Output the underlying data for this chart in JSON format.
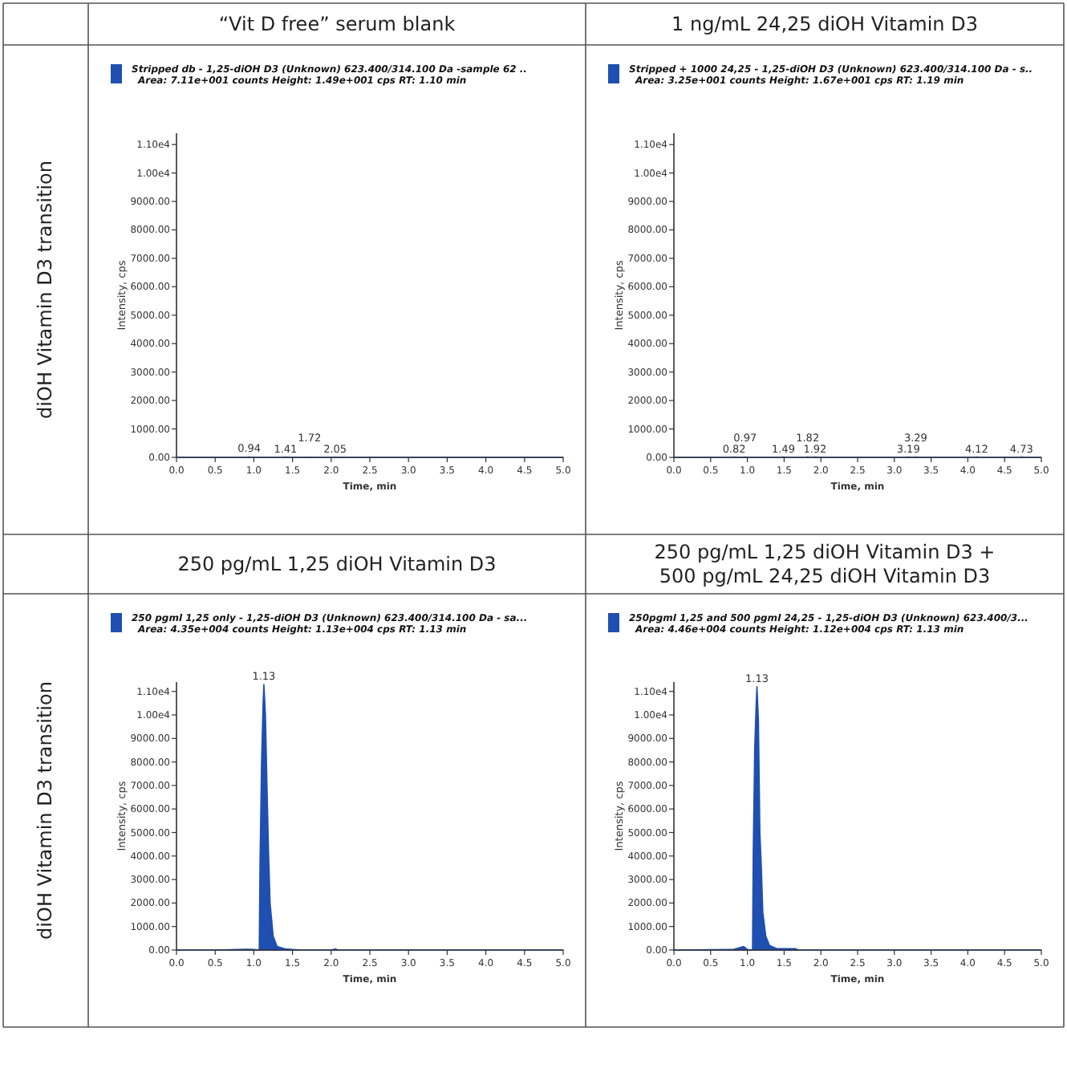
{
  "chart_data": [
    {
      "type": "area",
      "title": "“Vit D free” serum blank",
      "subtitle": "Area: 7.11e+001 counts  Height: 1.49e+001 cps  RT: 1.10 min",
      "xlabel": "Time, min",
      "ylabel": "Intensity, cps",
      "legend": "top left",
      "annotations": [
        "diOH Vitamin D3 transition",
        {
          "text": "0.94",
          "x": 0.94,
          "y": 15
        },
        {
          "text": "1.41",
          "x": 1.41,
          "y": 10
        },
        {
          "text": "1.72",
          "x": 1.72,
          "y": 8
        },
        {
          "text": "2.05",
          "x": 2.05,
          "y": 8
        }
      ],
      "xlim": [
        0,
        5
      ],
      "xticks": [
        {
          "value": 0,
          "label": "0.0"
        },
        0.5,
        {
          "value": 1,
          "label": "1.0"
        },
        1.5,
        {
          "value": 2,
          "label": "2.0"
        },
        2.5,
        {
          "value": 3,
          "label": "3.0"
        },
        3.5,
        {
          "value": 4,
          "label": "4.0"
        },
        4.5,
        {
          "value": 5,
          "label": "5.0"
        }
      ],
      "ylim": [
        0,
        11400
      ],
      "yticks": [
        {
          "value": 0,
          "label": "0.00"
        },
        {
          "value": 1000,
          "label": "1000.00"
        },
        {
          "value": 2000,
          "label": "2000.00"
        },
        {
          "value": 3000,
          "label": "3000.00"
        },
        {
          "value": 4000,
          "label": "4000.00"
        },
        {
          "value": 5000,
          "label": "5000.00"
        },
        {
          "value": 6000,
          "label": "6000.00"
        },
        {
          "value": 7000,
          "label": "7000.00"
        },
        {
          "value": 8000,
          "label": "8000.00"
        },
        {
          "value": 9000,
          "label": "9000.00"
        },
        {
          "value": 10000,
          "label": "1.00e4"
        },
        {
          "value": 11000,
          "label": "1.10e4"
        }
      ],
      "series": [
        {
          "name": "Stripped db - 1,25-diOH D3 (Unknown) 623.400/314.100 Da -sample 62 ..",
          "color": "#1f4fb0",
          "x": [
            0,
            0.5,
            0.9,
            0.94,
            0.98,
            1.38,
            1.41,
            1.45,
            1.68,
            1.72,
            1.76,
            2.01,
            2.05,
            2.1,
            3,
            4,
            5
          ],
          "values": [
            0,
            0,
            0,
            15,
            0,
            0,
            10,
            0,
            0,
            8,
            0,
            0,
            8,
            0,
            0,
            0,
            0
          ]
        }
      ]
    },
    {
      "type": "area",
      "title": "1 ng/mL 24,25 diOH Vitamin D3",
      "subtitle": "Area: 3.25e+001 counts  Height: 1.67e+001 cps  RT: 1.19 min",
      "xlabel": "Time, min",
      "ylabel": "Intensity, cps",
      "legend": "top left",
      "annotations": [
        {
          "text": "0.82",
          "x": 0.82,
          "y": 10
        },
        {
          "text": "0.97",
          "x": 0.97,
          "y": 10
        },
        {
          "text": "1.49",
          "x": 1.49,
          "y": 10
        },
        {
          "text": "1.82",
          "x": 1.82,
          "y": 10
        },
        {
          "text": "1.92",
          "x": 1.92,
          "y": 10
        },
        {
          "text": "3.19",
          "x": 3.19,
          "y": 10
        },
        {
          "text": "3.29",
          "x": 3.29,
          "y": 10
        },
        {
          "text": "4.12",
          "x": 4.12,
          "y": 10
        },
        {
          "text": "4.73",
          "x": 4.73,
          "y": 10
        }
      ],
      "xlim": [
        0,
        5
      ],
      "xticks": [
        {
          "value": 0,
          "label": "0.0"
        },
        0.5,
        {
          "value": 1,
          "label": "1.0"
        },
        1.5,
        {
          "value": 2,
          "label": "2.0"
        },
        2.5,
        {
          "value": 3,
          "label": "3.0"
        },
        3.5,
        {
          "value": 4,
          "label": "4.0"
        },
        4.5,
        {
          "value": 5,
          "label": "5.0"
        }
      ],
      "ylim": [
        0,
        11400
      ],
      "yticks": [
        {
          "value": 0,
          "label": "0.00"
        },
        {
          "value": 1000,
          "label": "1000.00"
        },
        {
          "value": 2000,
          "label": "2000.00"
        },
        {
          "value": 3000,
          "label": "3000.00"
        },
        {
          "value": 4000,
          "label": "4000.00"
        },
        {
          "value": 5000,
          "label": "5000.00"
        },
        {
          "value": 6000,
          "label": "6000.00"
        },
        {
          "value": 7000,
          "label": "7000.00"
        },
        {
          "value": 8000,
          "label": "8000.00"
        },
        {
          "value": 9000,
          "label": "9000.00"
        },
        {
          "value": 10000,
          "label": "1.00e4"
        },
        {
          "value": 11000,
          "label": "1.10e4"
        }
      ],
      "series": [
        {
          "name": "Stripped + 1000 24,25 - 1,25-diOH D3 (Unknown) 623.400/314.100 Da - s..",
          "color": "#1f4fb0",
          "x": [
            0,
            0.78,
            0.82,
            0.86,
            0.93,
            0.97,
            1.01,
            1.45,
            1.49,
            1.53,
            1.78,
            1.82,
            1.87,
            1.92,
            1.96,
            3.15,
            3.19,
            3.24,
            3.29,
            3.33,
            4.08,
            4.12,
            4.16,
            4.69,
            4.73,
            4.77,
            5
          ],
          "values": [
            0,
            0,
            10,
            0,
            0,
            10,
            0,
            0,
            10,
            0,
            0,
            10,
            0,
            10,
            0,
            0,
            10,
            0,
            10,
            0,
            0,
            10,
            0,
            0,
            10,
            0,
            0
          ]
        }
      ]
    },
    {
      "type": "area",
      "title": "250 pg/mL 1,25 diOH Vitamin D3",
      "subtitle": "Area: 4.35e+004 counts  Height: 1.13e+004 cps  RT: 1.13 min",
      "xlabel": "Time, min",
      "ylabel": "Intensity, cps",
      "legend": "top left",
      "annotations": [
        "diOH Vitamin D3 transition",
        {
          "text": "1.13",
          "x": 1.13,
          "y": 11300
        }
      ],
      "xlim": [
        0,
        5
      ],
      "xticks": [
        {
          "value": 0,
          "label": "0.0"
        },
        0.5,
        {
          "value": 1,
          "label": "1.0"
        },
        1.5,
        {
          "value": 2,
          "label": "2.0"
        },
        2.5,
        {
          "value": 3,
          "label": "3.0"
        },
        3.5,
        {
          "value": 4,
          "label": "4.0"
        },
        4.5,
        {
          "value": 5,
          "label": "5.0"
        }
      ],
      "ylim": [
        0,
        11400
      ],
      "yticks": [
        {
          "value": 0,
          "label": "0.00"
        },
        {
          "value": 1000,
          "label": "1000.00"
        },
        {
          "value": 2000,
          "label": "2000.00"
        },
        {
          "value": 3000,
          "label": "3000.00"
        },
        {
          "value": 4000,
          "label": "4000.00"
        },
        {
          "value": 5000,
          "label": "5000.00"
        },
        {
          "value": 6000,
          "label": "6000.00"
        },
        {
          "value": 7000,
          "label": "7000.00"
        },
        {
          "value": 8000,
          "label": "8000.00"
        },
        {
          "value": 9000,
          "label": "9000.00"
        },
        {
          "value": 10000,
          "label": "1.00e4"
        },
        {
          "value": 11000,
          "label": "1.10e4"
        }
      ],
      "series": [
        {
          "name": "250 pgml 1,25 only - 1,25-diOH D3 (Unknown) 623.400/314.100 Da - sa...",
          "color": "#1f4fb0",
          "x": [
            0,
            0.5,
            0.9,
            1.0,
            1.07,
            1.08,
            1.1,
            1.12,
            1.13,
            1.15,
            1.17,
            1.19,
            1.21,
            1.25,
            1.3,
            1.4,
            1.6,
            2.0,
            2.05,
            2.1,
            3,
            4,
            5
          ],
          "values": [
            0,
            0,
            30,
            20,
            0,
            3700,
            8000,
            10500,
            11300,
            10000,
            7000,
            4200,
            2000,
            600,
            150,
            50,
            0,
            0,
            40,
            0,
            0,
            0,
            0
          ]
        }
      ]
    },
    {
      "type": "area",
      "title": "250 pg/mL 1,25 diOH Vitamin D3 + 500 pg/mL 24,25 diOH Vitamin D3",
      "subtitle": "Area: 4.46e+004 counts  Height: 1.12e+004 cps  RT: 1.13 min",
      "xlabel": "Time, min",
      "ylabel": "Intensity, cps",
      "legend": "top left",
      "annotations": [
        {
          "text": "1.13",
          "x": 1.13,
          "y": 11200
        }
      ],
      "xlim": [
        0,
        5
      ],
      "xticks": [
        {
          "value": 0,
          "label": "0.0"
        },
        0.5,
        {
          "value": 1,
          "label": "1.0"
        },
        1.5,
        {
          "value": 2,
          "label": "2.0"
        },
        2.5,
        {
          "value": 3,
          "label": "3.0"
        },
        3.5,
        {
          "value": 4,
          "label": "4.0"
        },
        4.5,
        {
          "value": 5,
          "label": "5.0"
        }
      ],
      "ylim": [
        0,
        11400
      ],
      "yticks": [
        {
          "value": 0,
          "label": "0.00"
        },
        {
          "value": 1000,
          "label": "1000.00"
        },
        {
          "value": 2000,
          "label": "2000.00"
        },
        {
          "value": 3000,
          "label": "3000.00"
        },
        {
          "value": 4000,
          "label": "4000.00"
        },
        {
          "value": 5000,
          "label": "5000.00"
        },
        {
          "value": 6000,
          "label": "6000.00"
        },
        {
          "value": 7000,
          "label": "7000.00"
        },
        {
          "value": 8000,
          "label": "8000.00"
        },
        {
          "value": 9000,
          "label": "9000.00"
        },
        {
          "value": 10000,
          "label": "1.00e4"
        },
        {
          "value": 11000,
          "label": "1.10e4"
        }
      ],
      "series": [
        {
          "name": "250pgml 1,25 and 500 pgml 24,25 - 1,25-diOH D3 (Unknown) 623.400/3...",
          "color": "#1f4fb0",
          "x": [
            0,
            0.8,
            0.95,
            1.0,
            1.07,
            1.08,
            1.1,
            1.12,
            1.13,
            1.15,
            1.17,
            1.19,
            1.21,
            1.25,
            1.3,
            1.4,
            1.65,
            1.7,
            2.0,
            3,
            4,
            5
          ],
          "values": [
            0,
            20,
            150,
            20,
            0,
            4200,
            8600,
            10500,
            11200,
            9800,
            5000,
            3500,
            1600,
            600,
            200,
            60,
            60,
            0,
            0,
            0,
            0,
            0
          ]
        }
      ]
    }
  ]
}
